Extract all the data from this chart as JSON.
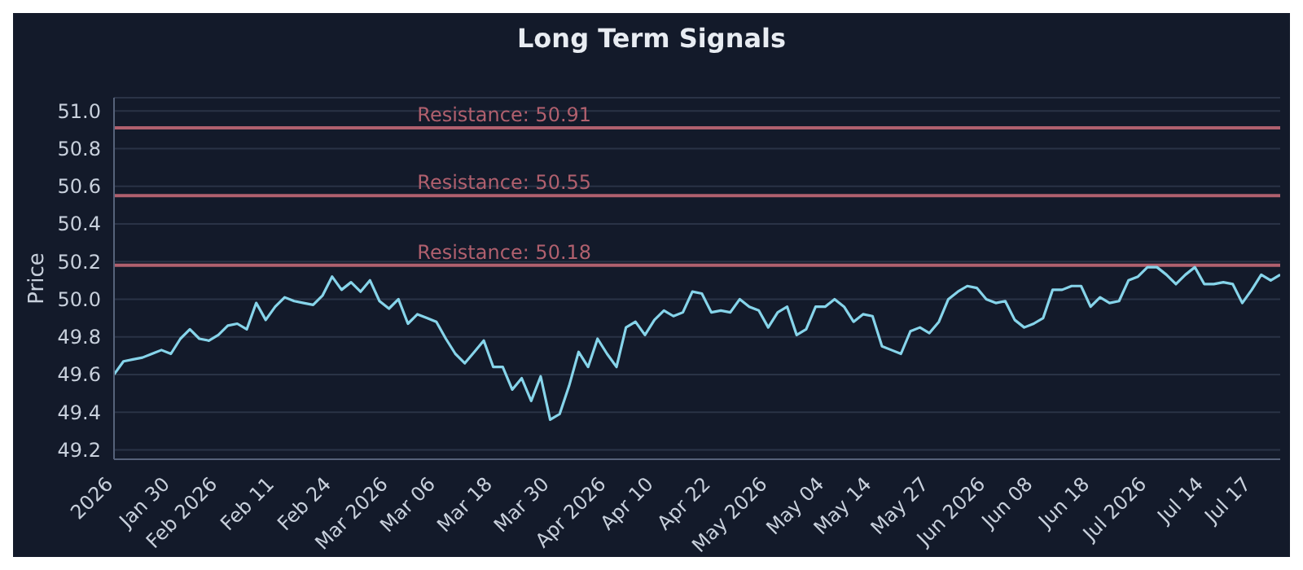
{
  "chart_data": {
    "type": "line",
    "title": "Long Term Signals",
    "ylabel": "Price",
    "categories": [
      "2026",
      null,
      null,
      null,
      null,
      null,
      "Jan 30",
      null,
      null,
      null,
      null,
      "Feb 2026",
      null,
      null,
      null,
      null,
      null,
      "Feb 11",
      null,
      null,
      null,
      null,
      null,
      "Feb 24",
      null,
      null,
      null,
      null,
      null,
      "Mar 2026",
      null,
      null,
      null,
      null,
      "Mar 06",
      null,
      null,
      null,
      null,
      null,
      "Mar 18",
      null,
      null,
      null,
      null,
      null,
      "Mar 30",
      null,
      null,
      null,
      null,
      null,
      "Apr 2026",
      null,
      null,
      null,
      null,
      "Apr 10",
      null,
      null,
      null,
      null,
      null,
      "Apr 22",
      null,
      null,
      null,
      null,
      null,
      "May 2026",
      null,
      null,
      null,
      null,
      null,
      "May 04",
      null,
      null,
      null,
      null,
      "May 14",
      null,
      null,
      null,
      null,
      null,
      "May 27",
      null,
      null,
      null,
      null,
      null,
      "Jun 2026",
      null,
      null,
      null,
      null,
      "Jun 08",
      null,
      null,
      null,
      null,
      null,
      "Jun 18",
      null,
      null,
      null,
      null,
      null,
      "Jul 2026",
      null,
      null,
      null,
      null,
      null,
      "Jul 14",
      null,
      null,
      null,
      null,
      "Jul 17",
      null,
      null,
      null
    ],
    "series": [
      {
        "color": "#86d4ea",
        "values": [
          49.6,
          49.67,
          49.68,
          49.69,
          49.71,
          49.73,
          49.71,
          49.79,
          49.84,
          49.79,
          49.78,
          49.81,
          49.86,
          49.87,
          49.84,
          49.98,
          49.89,
          49.96,
          50.01,
          49.99,
          49.98,
          49.97,
          50.02,
          50.12,
          50.05,
          50.09,
          50.04,
          50.1,
          49.99,
          49.95,
          50.0,
          49.87,
          49.92,
          49.9,
          49.88,
          49.79,
          49.71,
          49.66,
          49.72,
          49.78,
          49.64,
          49.64,
          49.52,
          49.58,
          49.46,
          49.59,
          49.36,
          49.39,
          49.54,
          49.72,
          49.64,
          49.79,
          49.71,
          49.64,
          49.85,
          49.88,
          49.81,
          49.89,
          49.94,
          49.91,
          49.93,
          50.04,
          50.03,
          49.93,
          49.94,
          49.93,
          50.0,
          49.96,
          49.94,
          49.85,
          49.93,
          49.96,
          49.81,
          49.84,
          49.96,
          49.96,
          50.0,
          49.96,
          49.88,
          49.92,
          49.91,
          49.75,
          49.73,
          49.71,
          49.83,
          49.85,
          49.82,
          49.88,
          50.0,
          50.04,
          50.07,
          50.06,
          50.0,
          49.98,
          49.99,
          49.89,
          49.85,
          49.87,
          49.9,
          50.05,
          50.05,
          50.07,
          50.07,
          49.96,
          50.01,
          49.98,
          49.99,
          50.1,
          50.12,
          50.17,
          50.17,
          50.13,
          50.08,
          50.13,
          50.17,
          50.08,
          50.08,
          50.09,
          50.08,
          49.98,
          50.05,
          50.13,
          50.1,
          50.13
        ]
      }
    ],
    "ylim": [
      49.15,
      51.07
    ],
    "yticks": [
      49.2,
      49.4,
      49.6,
      49.8,
      {
        "value": 50,
        "label": "50.0"
      },
      50.2,
      50.4,
      50.6,
      50.8,
      {
        "value": 51,
        "label": "51.0"
      }
    ],
    "grid": "y",
    "ref_lines": [
      {
        "axis": "y",
        "value": 50.91,
        "label": "Resistance: 50.91",
        "color": "#b0606e"
      },
      {
        "axis": "y",
        "value": 50.55,
        "label": "Resistance: 50.55",
        "color": "#b0606e"
      },
      {
        "axis": "y",
        "value": 50.18,
        "label": "Resistance: 50.18",
        "color": "#b0606e"
      }
    ]
  }
}
